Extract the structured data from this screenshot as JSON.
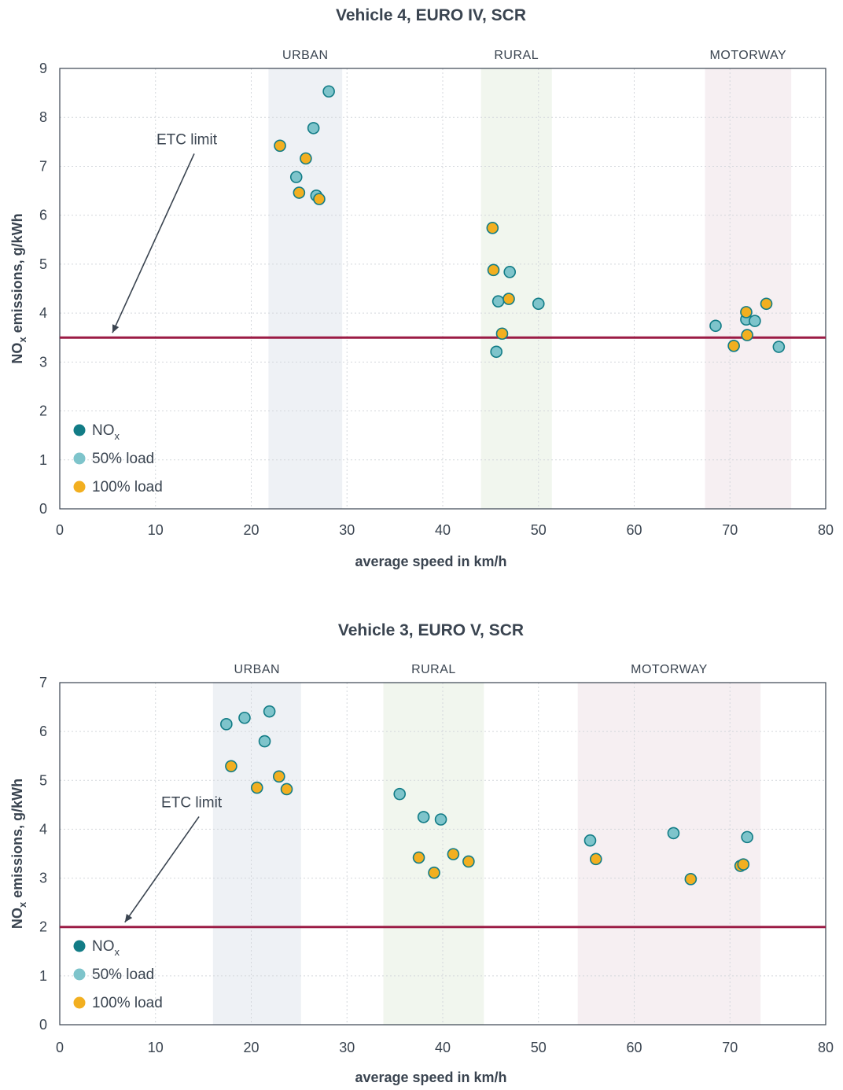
{
  "chart_data": [
    {
      "type": "scatter",
      "title": "Vehicle 4, EURO IV, SCR",
      "xlabel": "average speed in km/h",
      "ylabel_main": "NO",
      "ylabel_sub": "x",
      "ylabel_rest": " emissions, g/kWh",
      "xlim": [
        0,
        80
      ],
      "ylim": [
        0,
        9
      ],
      "x_ticks": [
        0,
        10,
        20,
        30,
        40,
        50,
        60,
        70,
        80
      ],
      "y_ticks": [
        0,
        1,
        2,
        3,
        4,
        5,
        6,
        7,
        8,
        9
      ],
      "grid": true,
      "zones": [
        {
          "label": "URBAN",
          "x_start": 21.8,
          "x_end": 29.5,
          "color": "#eef1f5"
        },
        {
          "label": "RURAL",
          "x_start": 44,
          "x_end": 51.4,
          "color": "#f1f6ee"
        },
        {
          "label": "MOTORWAY",
          "x_start": 67.4,
          "x_end": 76.4,
          "color": "#f6eff2"
        }
      ],
      "limit": {
        "label": "ETC limit",
        "value": 3.5,
        "label_x": 10.1,
        "label_y": 7.45,
        "arrow_to_x": 5.5,
        "color": "#9b1b45"
      },
      "legend": {
        "position": "bottom-left",
        "title_main": "NO",
        "title_sub": "x"
      },
      "series": [
        {
          "name": "50% load",
          "color": "#7ec4cb",
          "x": [
            28.1,
            26.5,
            24.7,
            26.8,
            45.8,
            47.0,
            50.0,
            45.6,
            68.5,
            71.7,
            72.6,
            75.1
          ],
          "y": [
            8.53,
            7.78,
            6.78,
            6.4,
            4.24,
            4.84,
            4.19,
            3.21,
            3.74,
            3.87,
            3.84,
            3.31
          ]
        },
        {
          "name": "100% load",
          "color": "#f2af20",
          "x": [
            23.0,
            25.7,
            25.0,
            27.1,
            45.2,
            45.3,
            46.9,
            46.2,
            71.7,
            73.8,
            70.4,
            71.8
          ],
          "y": [
            7.42,
            7.16,
            6.46,
            6.33,
            5.74,
            4.88,
            4.29,
            3.58,
            4.02,
            4.19,
            3.33,
            3.55
          ]
        }
      ]
    },
    {
      "type": "scatter",
      "title": "Vehicle 3, EURO V, SCR",
      "xlabel": "average speed in km/h",
      "ylabel_main": "NO",
      "ylabel_sub": "x",
      "ylabel_rest": " emissions, g/kWh",
      "xlim": [
        0,
        80
      ],
      "ylim": [
        0,
        7
      ],
      "x_ticks": [
        0,
        10,
        20,
        30,
        40,
        50,
        60,
        70,
        80
      ],
      "y_ticks": [
        0,
        1,
        2,
        3,
        4,
        5,
        6,
        7
      ],
      "grid": true,
      "zones": [
        {
          "label": "URBAN",
          "x_start": 16,
          "x_end": 25.2,
          "color": "#eef1f5"
        },
        {
          "label": "RURAL",
          "x_start": 33.8,
          "x_end": 44.3,
          "color": "#f1f6ee"
        },
        {
          "label": "MOTORWAY",
          "x_start": 54.1,
          "x_end": 73.2,
          "color": "#f6eff2"
        }
      ],
      "limit": {
        "label": "ETC limit",
        "value": 2.0,
        "label_x": 10.6,
        "label_y": 4.45,
        "arrow_to_x": 6.8,
        "color": "#9b1b45"
      },
      "legend": {
        "position": "bottom-left",
        "title_main": "NO",
        "title_sub": "x"
      },
      "series": [
        {
          "name": "50% load",
          "color": "#7ec4cb",
          "x": [
            17.4,
            19.3,
            21.9,
            21.4,
            35.5,
            38.0,
            39.8,
            55.4,
            64.1,
            71.8
          ],
          "y": [
            6.15,
            6.28,
            6.41,
            5.8,
            4.72,
            4.25,
            4.2,
            3.77,
            3.92,
            3.84
          ]
        },
        {
          "name": "100% load",
          "color": "#f2af20",
          "x": [
            17.9,
            20.6,
            22.9,
            23.7,
            37.5,
            39.1,
            41.1,
            42.7,
            56.0,
            65.9,
            71.1,
            71.4
          ],
          "y": [
            5.29,
            4.85,
            5.08,
            4.82,
            3.42,
            3.11,
            3.49,
            3.34,
            3.39,
            2.98,
            3.25,
            3.28
          ]
        }
      ]
    }
  ],
  "colors": {
    "nox_marker": "#127c86",
    "marker_stroke": "#127c86",
    "axis": "#3a4450",
    "grid": "#d4d7dc"
  }
}
